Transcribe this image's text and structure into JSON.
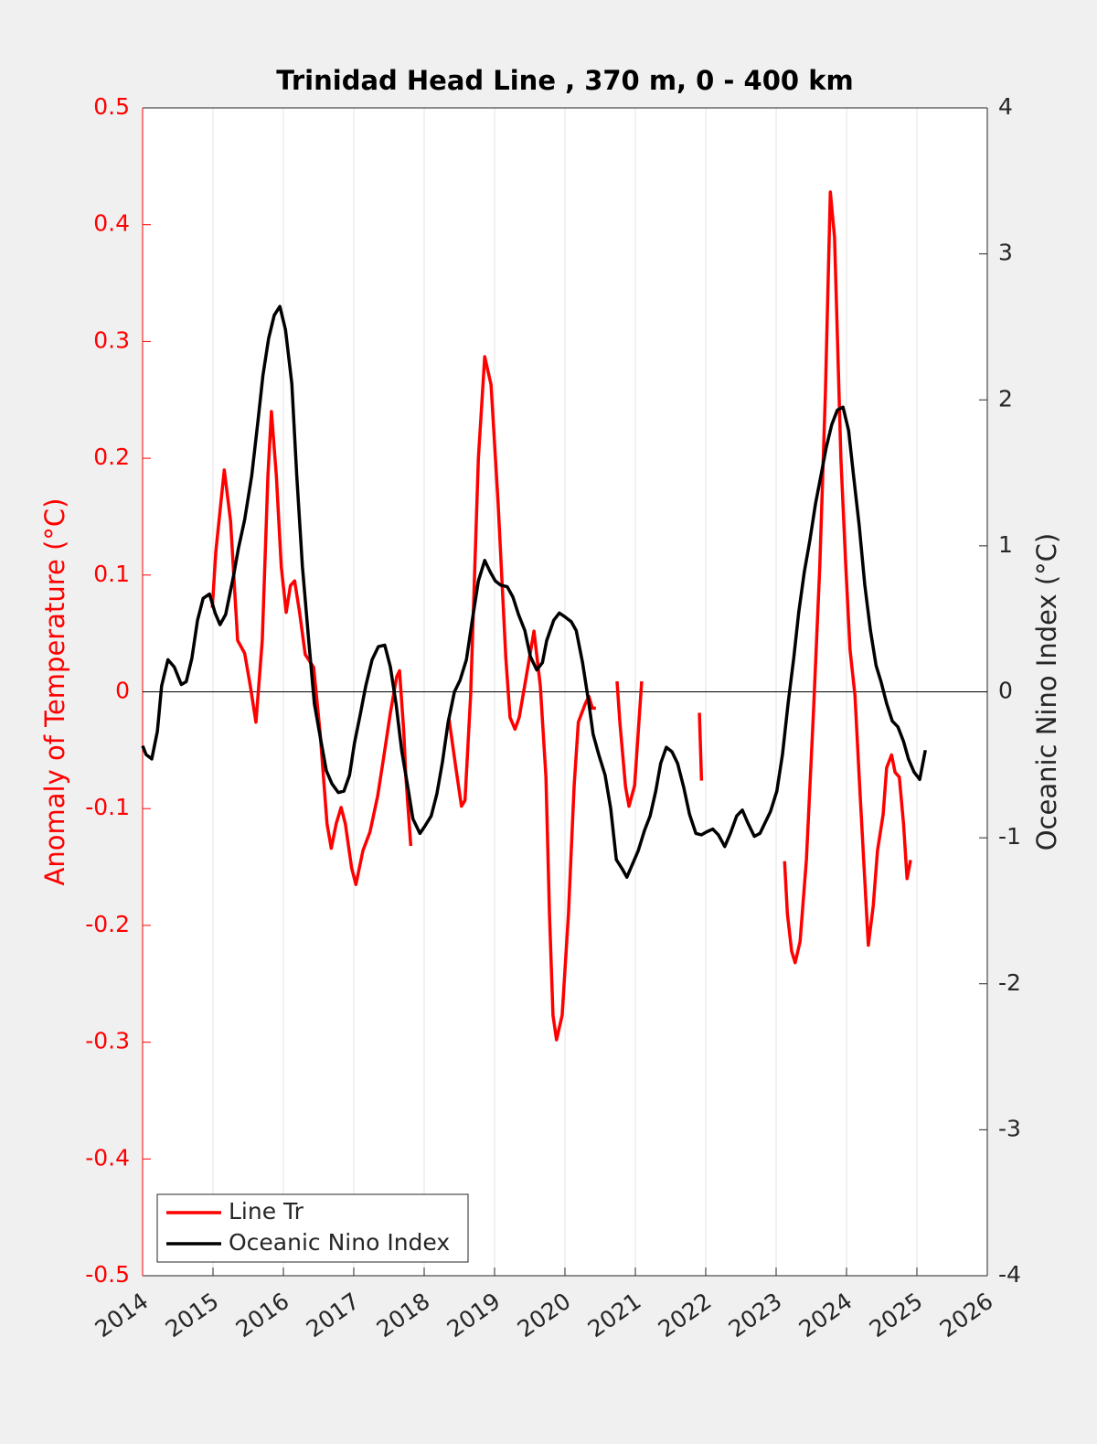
{
  "chart_data": {
    "type": "line",
    "title": "Trinidad Head Line , 370 m, 0 - 400 km",
    "y_label": "Anomaly of Temperature (°C)",
    "y2_label": "Oceanic Nino Index (°C)",
    "y_axis_color": "#ff0000",
    "xlim": [
      2014,
      2026
    ],
    "xticks": [
      2014,
      2015,
      2016,
      2017,
      2018,
      2019,
      2020,
      2021,
      2022,
      2023,
      2024,
      2025,
      2026
    ],
    "ylim": [
      -0.5,
      0.5
    ],
    "yticks": [
      0.5,
      0.4,
      0.3,
      0.2,
      0.1,
      0,
      -0.1,
      -0.2,
      -0.3,
      -0.4,
      -0.5
    ],
    "y2lim": [
      -4,
      4
    ],
    "y2ticks": [
      4,
      3,
      2,
      1,
      0,
      -1,
      -2,
      -3,
      -4
    ],
    "xgrid": true,
    "zero_line": true,
    "legend": "lower left",
    "series": [
      {
        "name": "Line Tr",
        "color": "#ff0000",
        "axis": "y",
        "x": [
          2014.99,
          2015.04,
          2015.16,
          2015.25,
          2015.35,
          2015.45,
          2015.53,
          2015.61,
          2015.7,
          2015.78,
          2015.83,
          2015.9,
          2015.97,
          2016.04,
          2016.1,
          2016.16,
          2016.23,
          2016.31,
          2016.43,
          2016.52,
          2016.62,
          2016.68,
          2016.75,
          2016.82,
          2016.88,
          2016.97,
          2017.03,
          2017.13,
          2017.23,
          2017.34,
          2017.43,
          2017.52,
          2017.61,
          2017.65,
          2017.71,
          2017.74,
          2017.81,
          null,
          2018.35,
          2018.45,
          2018.53,
          2018.58,
          2018.66,
          2018.77,
          2018.86,
          2018.95,
          2019.05,
          2019.16,
          2019.22,
          2019.29,
          2019.35,
          2019.45,
          2019.56,
          2019.65,
          2019.73,
          2019.78,
          2019.83,
          2019.88,
          2019.96,
          2020.05,
          2020.13,
          2020.19,
          2020.29,
          2020.34,
          2020.39,
          2020.44,
          null,
          2020.74,
          2020.78,
          2020.86,
          2020.91,
          2020.99,
          2021.09,
          null,
          2021.91,
          2021.94,
          null,
          2023.12,
          2023.16,
          2023.22,
          2023.27,
          2023.34,
          2023.43,
          2023.53,
          2023.62,
          2023.7,
          2023.77,
          2023.83,
          2023.92,
          2023.99,
          2024.05,
          2024.12,
          2024.18,
          2024.25,
          2024.31,
          2024.38,
          2024.44,
          2024.52,
          2024.57,
          2024.64,
          2024.69,
          2024.75,
          2024.81,
          2024.86,
          2024.91
        ],
        "values": [
          0.072,
          0.12,
          0.19,
          0.146,
          0.044,
          0.033,
          0.005,
          -0.026,
          0.044,
          0.185,
          0.24,
          0.185,
          0.107,
          0.068,
          0.091,
          0.095,
          0.068,
          0.032,
          0.021,
          -0.034,
          -0.113,
          -0.134,
          -0.113,
          -0.099,
          -0.113,
          -0.151,
          -0.165,
          -0.136,
          -0.12,
          -0.089,
          -0.054,
          -0.018,
          0.013,
          0.018,
          -0.034,
          -0.073,
          -0.132,
          null,
          -0.022,
          -0.065,
          -0.098,
          -0.093,
          -0.003,
          0.2,
          0.287,
          0.263,
          0.162,
          0.029,
          -0.022,
          -0.032,
          -0.022,
          0.013,
          0.052,
          0.005,
          -0.073,
          -0.19,
          -0.277,
          -0.298,
          -0.277,
          -0.19,
          -0.081,
          -0.026,
          -0.01,
          -0.004,
          -0.014,
          -0.014,
          null,
          0.009,
          -0.026,
          -0.081,
          -0.098,
          -0.08,
          0.009,
          null,
          -0.018,
          -0.076,
          null,
          -0.145,
          -0.19,
          -0.222,
          -0.232,
          -0.214,
          -0.144,
          -0.018,
          0.107,
          0.256,
          0.428,
          0.389,
          0.2,
          0.107,
          0.036,
          -0.003,
          -0.073,
          -0.151,
          -0.217,
          -0.183,
          -0.136,
          -0.105,
          -0.065,
          -0.054,
          -0.069,
          -0.073,
          -0.113,
          -0.16,
          -0.144
        ]
      },
      {
        "name": "Oceanic Nino Index",
        "color": "#000000",
        "axis": "y2",
        "x": [
          2014.0,
          2014.05,
          2014.13,
          2014.21,
          2014.27,
          2014.36,
          2014.45,
          2014.55,
          2014.62,
          2014.7,
          2014.78,
          2014.86,
          2014.95,
          2015.03,
          2015.1,
          2015.18,
          2015.29,
          2015.36,
          2015.45,
          2015.55,
          2015.64,
          2015.71,
          2015.79,
          2015.87,
          2015.95,
          2016.03,
          2016.12,
          2016.19,
          2016.27,
          2016.36,
          2016.44,
          2016.52,
          2016.61,
          2016.69,
          2016.78,
          2016.86,
          2016.94,
          2017.01,
          2017.09,
          2017.17,
          2017.26,
          2017.35,
          2017.44,
          2017.52,
          2017.6,
          2017.68,
          2017.77,
          2017.84,
          2017.94,
          2018.01,
          2018.1,
          2018.18,
          2018.26,
          2018.34,
          2018.43,
          2018.51,
          2018.6,
          2018.68,
          2018.77,
          2018.86,
          2018.94,
          2019.01,
          2019.09,
          2019.18,
          2019.26,
          2019.34,
          2019.43,
          2019.51,
          2019.6,
          2019.68,
          2019.74,
          2019.84,
          2019.92,
          2020.01,
          2020.09,
          2020.16,
          2020.25,
          2020.34,
          2020.4,
          2020.48,
          2020.57,
          2020.65,
          2020.73,
          2020.81,
          2020.88,
          2020.96,
          2021.04,
          2021.13,
          2021.21,
          2021.29,
          2021.36,
          2021.44,
          2021.52,
          2021.6,
          2021.69,
          2021.77,
          2021.86,
          2021.94,
          2022.01,
          2022.1,
          2022.18,
          2022.27,
          2022.35,
          2022.44,
          2022.52,
          2022.6,
          2022.69,
          2022.77,
          2022.84,
          2022.92,
          2023.01,
          2023.09,
          2023.17,
          2023.25,
          2023.32,
          2023.4,
          2023.48,
          2023.56,
          2023.64,
          2023.71,
          2023.79,
          2023.87,
          2023.95,
          2024.03,
          2024.1,
          2024.18,
          2024.26,
          2024.34,
          2024.42,
          2024.49,
          2024.57,
          2024.65,
          2024.73,
          2024.81,
          2024.88,
          2024.96,
          2025.04,
          2025.12
        ],
        "values": [
          -0.37,
          -0.43,
          -0.46,
          -0.27,
          0.04,
          0.22,
          0.17,
          0.05,
          0.07,
          0.23,
          0.49,
          0.64,
          0.67,
          0.54,
          0.46,
          0.53,
          0.79,
          0.98,
          1.18,
          1.48,
          1.86,
          2.17,
          2.42,
          2.58,
          2.64,
          2.48,
          2.11,
          1.48,
          0.86,
          0.35,
          -0.08,
          -0.3,
          -0.54,
          -0.63,
          -0.69,
          -0.68,
          -0.57,
          -0.35,
          -0.16,
          0.04,
          0.22,
          0.31,
          0.32,
          0.17,
          -0.08,
          -0.4,
          -0.66,
          -0.87,
          -0.97,
          -0.92,
          -0.85,
          -0.7,
          -0.48,
          -0.21,
          0,
          0.08,
          0.22,
          0.48,
          0.76,
          0.9,
          0.82,
          0.76,
          0.73,
          0.72,
          0.65,
          0.53,
          0.42,
          0.24,
          0.15,
          0.2,
          0.35,
          0.49,
          0.54,
          0.51,
          0.48,
          0.42,
          0.2,
          -0.08,
          -0.29,
          -0.43,
          -0.57,
          -0.8,
          -1.15,
          -1.21,
          -1.27,
          -1.18,
          -1.09,
          -0.95,
          -0.85,
          -0.68,
          -0.49,
          -0.38,
          -0.41,
          -0.49,
          -0.66,
          -0.84,
          -0.97,
          -0.98,
          -0.96,
          -0.94,
          -0.98,
          -1.06,
          -0.97,
          -0.85,
          -0.81,
          -0.9,
          -0.99,
          -0.97,
          -0.9,
          -0.82,
          -0.68,
          -0.43,
          -0.08,
          0.23,
          0.54,
          0.82,
          1.04,
          1.29,
          1.49,
          1.67,
          1.83,
          1.93,
          1.95,
          1.79,
          1.48,
          1.14,
          0.73,
          0.42,
          0.18,
          0.07,
          -0.08,
          -0.2,
          -0.24,
          -0.34,
          -0.46,
          -0.55,
          -0.6,
          -0.4
        ]
      }
    ]
  }
}
